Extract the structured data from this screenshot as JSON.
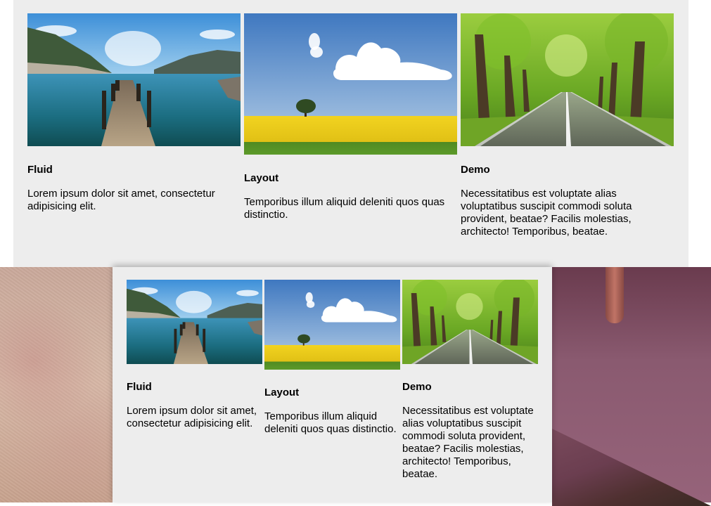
{
  "columns": [
    {
      "title": "Fluid",
      "text": "Lorem ipsum dolor sit amet, consectetur adipisicing elit.",
      "image": "pier-over-lake-photo"
    },
    {
      "title": "Layout",
      "text": "Temporibus illum aliquid deleniti quos quas distinctio.",
      "image": "tree-in-yellow-field-photo"
    },
    {
      "title": "Demo",
      "text": "Necessitatibus est voluptate alias voluptatibus suscipit commodi soluta provident, beatae? Facilis molestias, architecto! Temporibus, beatae.",
      "image": "tree-lined-road-photo"
    }
  ]
}
